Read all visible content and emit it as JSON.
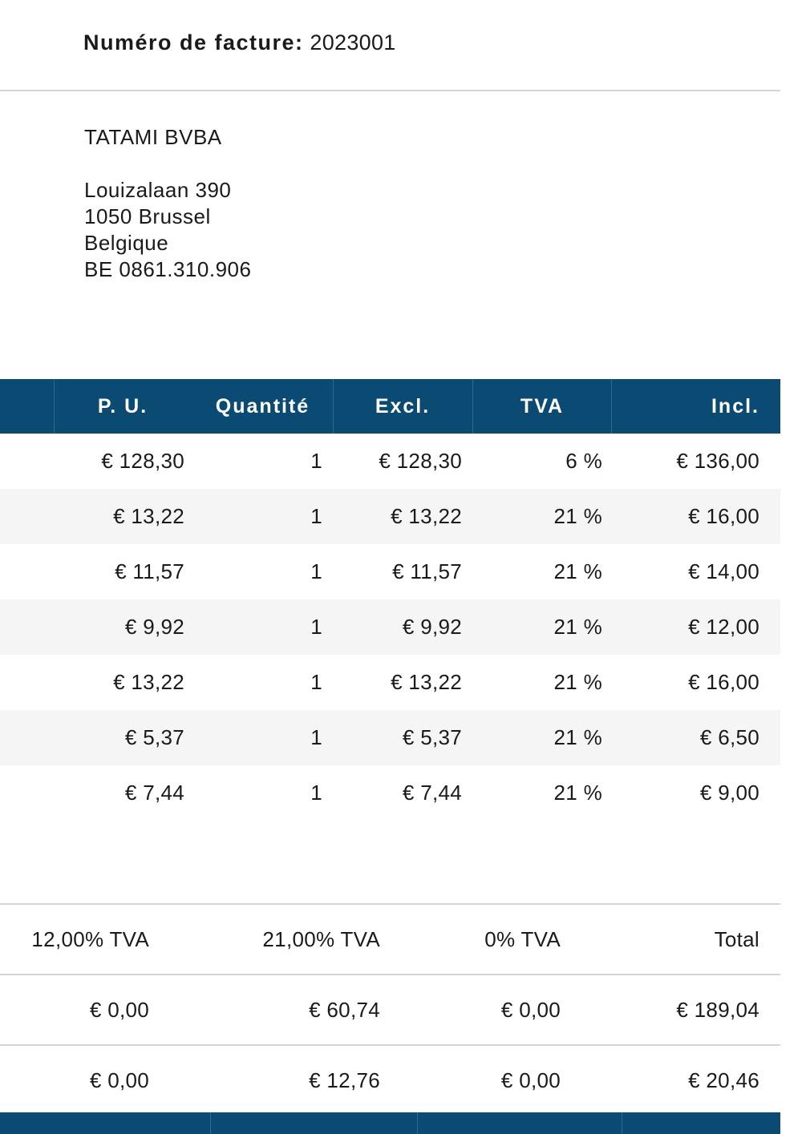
{
  "invoice": {
    "number_label": "Numéro de facture:",
    "number_value": "2023001"
  },
  "address": {
    "company": "TATAMI BVBA",
    "street": "Louizalaan 390",
    "city": "1050 Brussel",
    "country": "Belgique",
    "vat_number": "BE 0861.310.906"
  },
  "items_table": {
    "headers": {
      "unit_price": "P. U.",
      "quantity": "Quantité",
      "excl": "Excl.",
      "tva": "TVA",
      "incl": "Incl."
    },
    "rows": [
      {
        "unit_price": "€ 128,30",
        "quantity": "1",
        "excl": "€ 128,30",
        "tva": "6 %",
        "incl": "€ 136,00"
      },
      {
        "unit_price": "€ 13,22",
        "quantity": "1",
        "excl": "€ 13,22",
        "tva": "21 %",
        "incl": "€ 16,00"
      },
      {
        "unit_price": "€ 11,57",
        "quantity": "1",
        "excl": "€ 11,57",
        "tva": "21 %",
        "incl": "€ 14,00"
      },
      {
        "unit_price": "€ 9,92",
        "quantity": "1",
        "excl": "€ 9,92",
        "tva": "21 %",
        "incl": "€ 12,00"
      },
      {
        "unit_price": "€ 13,22",
        "quantity": "1",
        "excl": "€ 13,22",
        "tva": "21 %",
        "incl": "€ 16,00"
      },
      {
        "unit_price": "€ 5,37",
        "quantity": "1",
        "excl": "€ 5,37",
        "tva": "21 %",
        "incl": "€ 6,50"
      },
      {
        "unit_price": "€ 7,44",
        "quantity": "1",
        "excl": "€ 7,44",
        "tva": "21 %",
        "incl": "€ 9,00"
      }
    ]
  },
  "totals_table": {
    "headers": [
      "12,00% TVA",
      "21,00% TVA",
      "0% TVA",
      "Total"
    ],
    "rows": [
      [
        "€ 0,00",
        "€ 60,74",
        "€ 0,00",
        "€ 189,04"
      ],
      [
        "€ 0,00",
        "€ 12,76",
        "€ 0,00",
        "€ 20,46"
      ]
    ]
  },
  "colors": {
    "header_bg": "#0b4a72",
    "header_text": "#ffffff",
    "stripe": "#f5f5f5",
    "rule": "#d4d4d4"
  }
}
